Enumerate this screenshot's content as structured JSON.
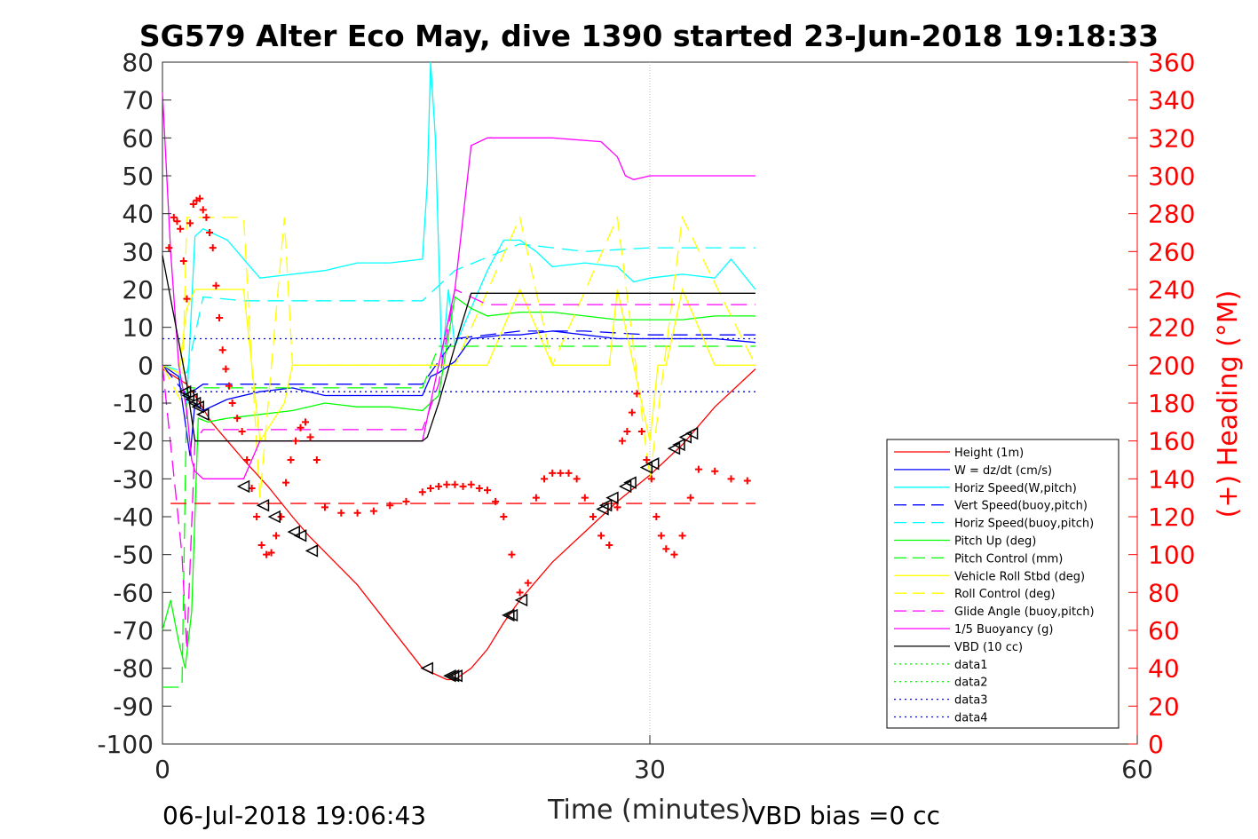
{
  "chart_data": {
    "type": "line",
    "title": "SG579 Alter Eco May, dive 1390 started 23-Jun-2018 19:18:33",
    "xlabel": "Time (minutes)",
    "ylabel": "",
    "y2label": "(+) Heading (°M)",
    "xlim": [
      0,
      60
    ],
    "ylim": [
      -100,
      80
    ],
    "y2lim": [
      0,
      360
    ],
    "x_ticks": [
      "0",
      "30",
      "60"
    ],
    "y_ticks": [
      "80",
      "70",
      "60",
      "50",
      "40",
      "30",
      "20",
      "10",
      "0",
      "-10",
      "-20",
      "-30",
      "-40",
      "-50",
      "-60",
      "-70",
      "-80",
      "-90",
      "-100"
    ],
    "y2_ticks": [
      "360",
      "340",
      "320",
      "300",
      "280",
      "260",
      "240",
      "220",
      "200",
      "180",
      "160",
      "140",
      "120",
      "100",
      "80",
      "60",
      "40",
      "20",
      "0"
    ],
    "grid": "x at 30 only",
    "legend_position": "bottom-right",
    "footer_left": "06-Jul-2018 19:06:43",
    "footer_right": "VBD bias =0 cc",
    "colors": {
      "height": "#ff0000",
      "w": "#0000ff",
      "horiz": "#00ffff",
      "pitch": "#00ff00",
      "roll": "#ffff00",
      "glide": "#ff00ff",
      "buoy": "#ff00ff",
      "vbd": "#000000",
      "heading": "#ff0000"
    },
    "series": [
      {
        "name": "Height (1m)",
        "color": "#ff0000",
        "style": "solid",
        "x": [
          0,
          1.5,
          2.0,
          2.3,
          3,
          5,
          6.5,
          8,
          9,
          12,
          16,
          17.5,
          18,
          19,
          20,
          21,
          22,
          24,
          26,
          28,
          30,
          32,
          34,
          36.5
        ],
        "y": [
          -1,
          -5,
          -8,
          -10,
          -15,
          -25,
          -32,
          -40,
          -45,
          -58,
          -80,
          -83,
          -83,
          -80,
          -75,
          -68,
          -62,
          -52,
          -44,
          -36,
          -29,
          -21,
          -11,
          -1
        ]
      },
      {
        "name": "W = dz/dt (cm/s)",
        "color": "#0000ff",
        "style": "solid",
        "x": [
          0,
          1.0,
          1.4,
          1.7,
          2.0,
          2.5,
          4,
          6,
          8,
          10,
          12,
          14,
          16,
          16.5,
          17,
          18,
          19,
          21,
          22,
          24,
          26,
          28,
          30,
          32,
          34,
          36.5
        ],
        "y": [
          0,
          -3,
          -15,
          -24,
          -10,
          -12,
          -9,
          -7,
          -6,
          -8,
          -8,
          -8,
          -8,
          -3,
          -2,
          1,
          7,
          8,
          8,
          9,
          8,
          7,
          7,
          7,
          7,
          6
        ]
      },
      {
        "name": "Horiz Speed(W,pitch)",
        "color": "#00ffff",
        "style": "solid",
        "x": [
          0,
          1.0,
          1.5,
          2.0,
          2.5,
          3,
          4,
          5,
          6,
          8,
          10,
          12,
          14,
          16,
          16.3,
          16.5,
          16.8,
          17.2,
          17.6,
          18,
          19,
          20,
          21,
          22,
          23,
          24,
          26,
          28,
          29,
          30,
          32,
          34,
          35,
          36.5
        ],
        "y": [
          0,
          -2,
          -10,
          34,
          36,
          35,
          33,
          28,
          23,
          24,
          25,
          27,
          27,
          28,
          48,
          80,
          60,
          0,
          20,
          5,
          15,
          25,
          33,
          33,
          30,
          26,
          27,
          26,
          22,
          23,
          24,
          23,
          28,
          20
        ]
      },
      {
        "name": "Vert Speed(buoy,pitch)",
        "color": "#0000ff",
        "style": "dashed",
        "x": [
          0,
          1.5,
          2.5,
          5,
          10,
          16,
          18,
          22,
          26,
          30,
          34,
          36.5
        ],
        "y": [
          0,
          -8,
          -5,
          -5,
          -5,
          -5,
          7,
          9,
          9,
          8,
          8,
          8
        ]
      },
      {
        "name": "Horiz Speed(buoy,pitch)",
        "color": "#00ffff",
        "style": "dashed",
        "x": [
          0,
          1.5,
          2.5,
          5,
          10,
          16,
          18,
          22,
          26,
          30,
          34,
          36.5
        ],
        "y": [
          0,
          -2,
          18,
          17,
          17,
          17,
          25,
          32,
          30,
          31,
          31,
          31
        ]
      },
      {
        "name": "Pitch Up (deg)",
        "color": "#00ff00",
        "style": "solid",
        "x": [
          0,
          0.5,
          1.0,
          1.4,
          1.8,
          2.2,
          2.8,
          4,
          6,
          8,
          10,
          12,
          14,
          16,
          17,
          18,
          19,
          20,
          22,
          24,
          26,
          28,
          30,
          32,
          34,
          36.5
        ],
        "y": [
          -70,
          -62,
          -73,
          -80,
          -65,
          -14,
          -15,
          -14,
          -13,
          -12,
          -10,
          -11,
          -11,
          -12,
          -8,
          18,
          15,
          13,
          14,
          14,
          13,
          12,
          12,
          12,
          13,
          13
        ]
      },
      {
        "name": "Pitch Control (mm)",
        "color": "#00ff00",
        "style": "dashed",
        "x": [
          0,
          1.2,
          1.5,
          2.5,
          5,
          10,
          16,
          17,
          18,
          20,
          30,
          36.5
        ],
        "y": [
          -85,
          -85,
          -6,
          -6,
          -6,
          -6,
          -6,
          5,
          5,
          5,
          5,
          5
        ]
      },
      {
        "name": "Vehicle Roll Stbd (deg)",
        "color": "#ffff00",
        "style": "solid",
        "x": [
          0,
          1.0,
          1.5,
          2.0,
          2.5,
          5,
          5.5,
          6,
          7.5,
          8,
          9,
          10,
          12,
          14,
          16,
          18,
          20,
          22,
          24,
          26,
          27.5,
          28,
          30,
          30.5,
          31,
          32,
          34,
          36.5
        ],
        "y": [
          0,
          -2,
          15,
          20,
          20,
          20,
          0,
          -20,
          -10,
          0,
          0,
          0,
          0,
          0,
          0,
          0,
          0,
          20,
          0,
          0,
          0,
          20,
          -20,
          0,
          0,
          20,
          0,
          0
        ]
      },
      {
        "name": "Roll Control (deg)",
        "color": "#ffff00",
        "style": "dashed",
        "x": [
          0,
          1.2,
          1.5,
          2.0,
          2.5,
          5,
          5.5,
          6,
          7.5,
          8,
          9,
          10,
          16,
          18,
          22,
          24,
          28,
          30,
          32,
          36.5
        ],
        "y": [
          0,
          -10,
          39,
          39,
          39,
          39,
          0,
          -35,
          39,
          0,
          0,
          0,
          0,
          0,
          39,
          0,
          39,
          -30,
          39,
          0
        ]
      },
      {
        "name": "Glide Angle (buoy,pitch)",
        "color": "#ff00ff",
        "style": "dashed",
        "x": [
          0,
          1.2,
          1.5,
          2.0,
          2.5,
          5,
          10,
          16,
          17,
          18,
          20,
          30,
          36.5
        ],
        "y": [
          0,
          -50,
          -75,
          -20,
          -17,
          -17,
          -17,
          -17,
          -5,
          20,
          16,
          16,
          16
        ]
      },
      {
        "name": "1/5 Buoyancy (g)",
        "color": "#ff00ff",
        "style": "solid",
        "x": [
          0,
          0.5,
          1.0,
          1.5,
          1.8,
          2.0,
          2.5,
          5,
          5.5,
          6,
          8,
          10,
          12,
          14,
          16,
          17,
          18,
          19,
          20,
          24,
          27,
          28,
          28.5,
          29,
          30,
          33,
          36.5
        ],
        "y": [
          72,
          30,
          0,
          -12,
          -25,
          -28,
          -30,
          -30,
          -25,
          -20,
          -20,
          -20,
          -20,
          -20,
          -20,
          0,
          20,
          58,
          60,
          60,
          59,
          55,
          50,
          49,
          50,
          50,
          50
        ]
      },
      {
        "name": "VBD (10 cc)",
        "color": "#000000",
        "style": "solid",
        "x": [
          0,
          1.5,
          2.0,
          5,
          10,
          15,
          16,
          16.3,
          17,
          18,
          19,
          20,
          24,
          28,
          32,
          36.5
        ],
        "y": [
          29,
          -5,
          -20,
          -20,
          -20,
          -20,
          -20,
          -19,
          -10,
          5,
          19,
          19,
          19,
          19,
          19,
          19
        ]
      },
      {
        "name": "data1",
        "color": "#00ff00",
        "style": "dotted",
        "x": [],
        "y": []
      },
      {
        "name": "data2",
        "color": "#00ff00",
        "style": "dotted",
        "x": [],
        "y": []
      },
      {
        "name": "data3",
        "color": "#0000ff",
        "style": "dotted",
        "x": [
          0,
          36.5
        ],
        "y": [
          7,
          7
        ]
      },
      {
        "name": "data4",
        "color": "#0000ff",
        "style": "dotted",
        "x": [
          0,
          36.5
        ],
        "y": [
          -7,
          -7
        ]
      }
    ],
    "heading_reference": {
      "axis": "right",
      "value": 127,
      "x": [
        0.5,
        36.5
      ],
      "color": "#ff0000",
      "style": "dashed"
    },
    "heading_points": {
      "axis": "right",
      "x": [
        0.4,
        0.7,
        0.9,
        1.1,
        1.3,
        1.5,
        1.7,
        1.9,
        2.1,
        2.3,
        2.5,
        2.7,
        2.9,
        3.1,
        3.3,
        3.5,
        3.7,
        3.9,
        4.1,
        4.3,
        4.6,
        4.9,
        5.2,
        5.5,
        5.8,
        6.1,
        6.4,
        6.7,
        7.0,
        7.3,
        7.6,
        7.9,
        8.2,
        8.5,
        8.8,
        9.1,
        9.5,
        10,
        11,
        12,
        13,
        14,
        15,
        16,
        16.5,
        17,
        17.5,
        18,
        18.5,
        19,
        19.5,
        20,
        20.5,
        21,
        21.5,
        22,
        22.5,
        23,
        23.5,
        24,
        24.5,
        25,
        25.5,
        26,
        26.5,
        27,
        27.5,
        28,
        28.3,
        28.6,
        28.9,
        29.2,
        29.5,
        29.8,
        30.1,
        30.4,
        30.7,
        31,
        31.5,
        32,
        32.5,
        33,
        34,
        35,
        36
      ],
      "y": [
        262,
        278,
        276,
        272,
        255,
        235,
        275,
        285,
        287,
        288,
        282,
        278,
        270,
        262,
        242,
        225,
        208,
        198,
        189,
        180,
        172,
        165,
        150,
        135,
        120,
        105,
        100,
        101,
        110,
        120,
        138,
        150,
        160,
        167,
        170,
        162,
        150,
        125,
        122,
        122,
        123,
        126,
        128,
        133,
        135,
        136,
        137,
        137,
        136,
        137,
        135,
        134,
        128,
        120,
        100,
        80,
        85,
        130,
        140,
        143,
        143,
        143,
        140,
        130,
        120,
        110,
        105,
        125,
        160,
        165,
        175,
        185,
        165,
        150,
        140,
        120,
        110,
        103,
        100,
        110,
        130,
        145,
        144,
        140,
        139
      ]
    },
    "triangle_markers_x": [
      1.4,
      1.6,
      1.8,
      2.0,
      2.2,
      2.5,
      5.0,
      6.2,
      6.9,
      8.1,
      8.5,
      9.2,
      16.3,
      17.7,
      17.9,
      18.1,
      21.3,
      21.5,
      22.1,
      27.1,
      27.3,
      27.7,
      28.5,
      28.8,
      29.8,
      30.2,
      31.5,
      31.8,
      32.2,
      32.6
    ],
    "triangle_markers_y": [
      -7,
      -8,
      -9,
      -10,
      -11,
      -13,
      -32,
      -37,
      -40,
      -44,
      -45,
      -49,
      -80,
      -82,
      -82,
      -82,
      -66,
      -66,
      -62,
      -38,
      -37,
      -35,
      -32,
      -31,
      -27,
      -26,
      -22,
      -21,
      -19,
      -18
    ]
  }
}
